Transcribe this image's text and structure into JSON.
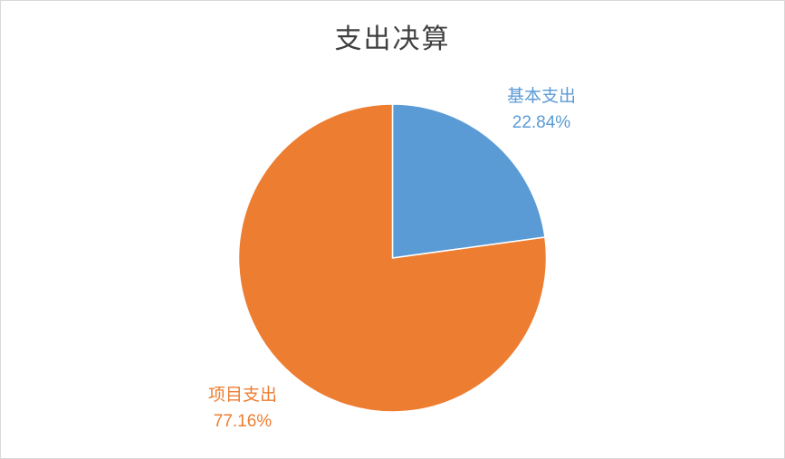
{
  "chart_data": {
    "type": "pie",
    "title": "支出决算",
    "slices": [
      {
        "name": "基本支出",
        "value": 22.84,
        "label": "22.84%",
        "color": "#5b9bd5"
      },
      {
        "name": "项目支出",
        "value": 77.16,
        "label": "77.16%",
        "color": "#ed7d31"
      }
    ],
    "legend": "none",
    "start_angle_deg": 0,
    "direction": "clockwise"
  }
}
